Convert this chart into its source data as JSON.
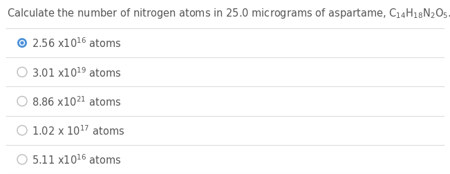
{
  "title": "Calculate the number of nitrogen atoms in 25.0 micrograms of aspartame, C$_{14}$H$_{18}$N$_{2}$O$_{5}$.",
  "background_color": "#ffffff",
  "options": [
    {
      "text": "2.56 x10$^{16}$ atoms",
      "selected": true
    },
    {
      "text": "3.01 x10$^{19}$ atoms",
      "selected": false
    },
    {
      "text": "8.86 x10$^{21}$ atoms",
      "selected": false
    },
    {
      "text": "1.02 x 10$^{17}$ atoms",
      "selected": false
    },
    {
      "text": "5.11 x10$^{16}$ atoms",
      "selected": false
    }
  ],
  "selected_color": "#4a90d9",
  "unselected_color": "#bbbbbb",
  "text_color": "#555555",
  "line_color": "#dddddd",
  "title_fontsize": 10.5,
  "option_fontsize": 10.5,
  "fig_width": 6.51,
  "fig_height": 2.53,
  "dpi": 100
}
